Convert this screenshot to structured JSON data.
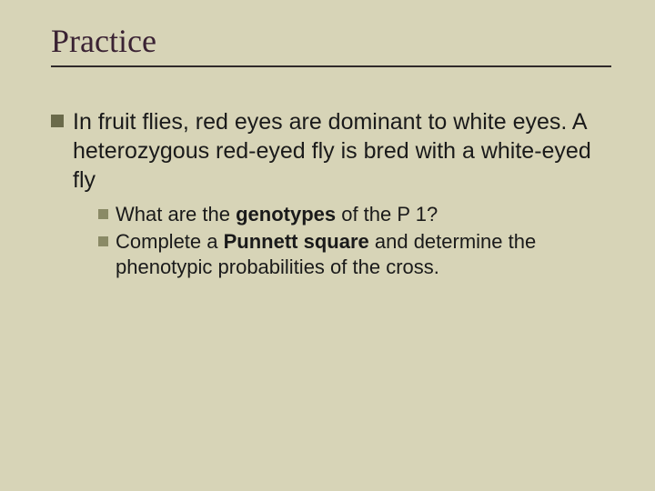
{
  "slide": {
    "background_color": "#d7d4b7",
    "title": {
      "text": "Practice",
      "font_family": "Times New Roman",
      "font_size": 36,
      "color": "#3a2233",
      "rule_color": "#2f2a2a"
    },
    "bullet_level1_color": "#6a6a4a",
    "bullet_level2_color": "#8a8a66",
    "body_color": "#1a1a1a",
    "level1_fontsize": 25,
    "level2_fontsize": 22,
    "main_point": "In fruit flies, red eyes are dominant to white eyes.  A heterozygous red-eyed fly is bred with a white-eyed fly",
    "sub_a_pre": "What are the ",
    "sub_a_bold": "genotypes",
    "sub_a_post": " of the P 1?",
    "sub_b_pre": "Complete a ",
    "sub_b_bold": "Punnett square",
    "sub_b_post": " and determine the phenotypic probabilities of the cross."
  }
}
